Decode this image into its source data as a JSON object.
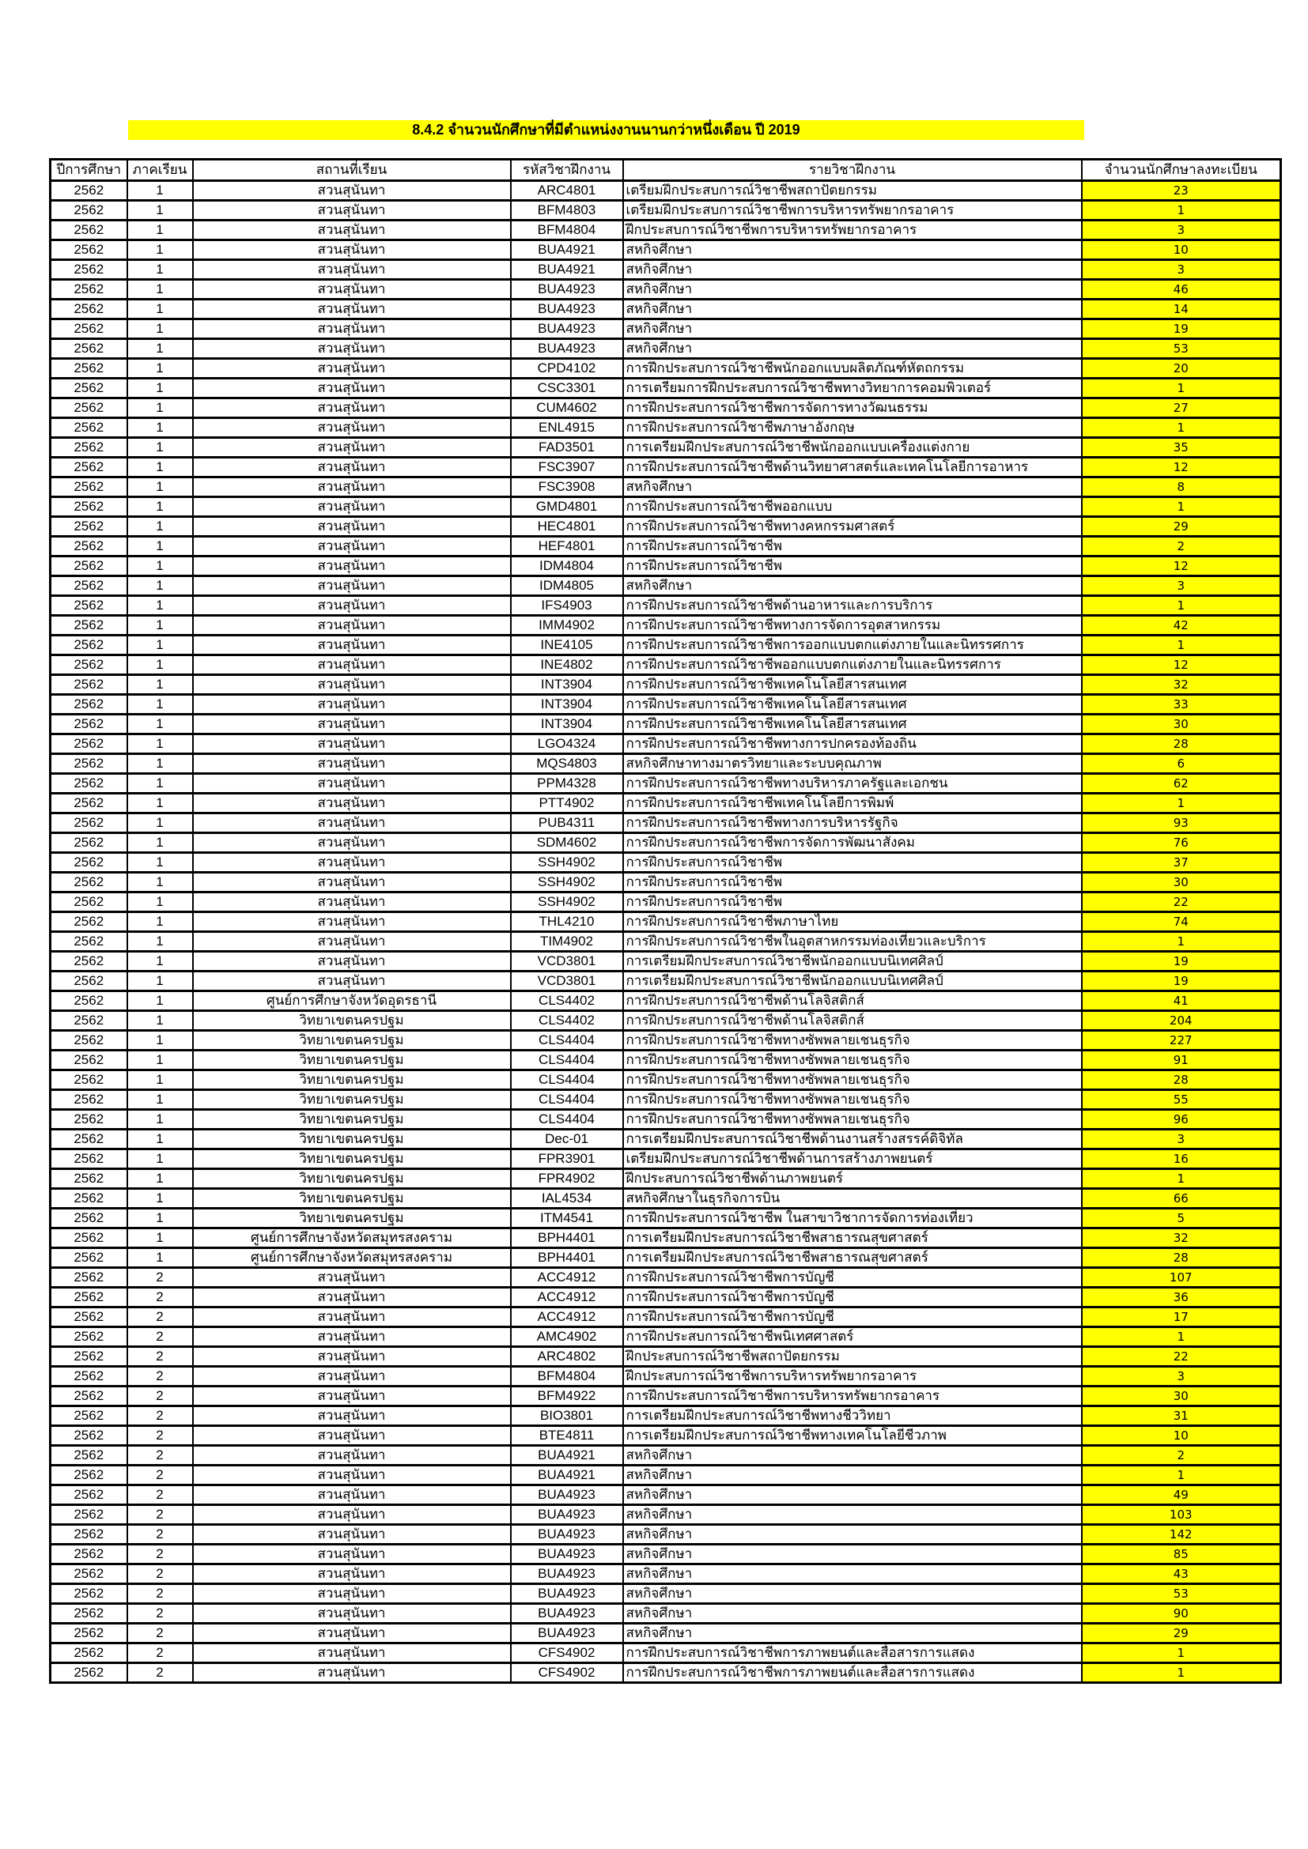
{
  "title": "8.4.2 จำนวนนักศึกษาที่มีตำแหน่งงานนานกว่าหนึ่งเดือน ปี 2019",
  "colors": {
    "highlight": "#ffff00",
    "border": "#000000"
  },
  "headers": [
    "ปีการศึกษา",
    "ภาคเรียน",
    "สถานที่เรียน",
    "รหัสวิชาฝึกงาน",
    "รายวิชาฝึกงาน",
    "จำนวนนักศึกษาลงทะเบียน"
  ],
  "rows": [
    [
      "2562",
      "1",
      "สวนสุนันทา",
      "ARC4801",
      "เตรียมฝึกประสบการณ์วิชาชีพสถาปัตยกรรม",
      "23"
    ],
    [
      "2562",
      "1",
      "สวนสุนันทา",
      "BFM4803",
      "เตรียมฝึกประสบการณ์วิชาชีพการบริหารทรัพยากรอาคาร",
      "1"
    ],
    [
      "2562",
      "1",
      "สวนสุนันทา",
      "BFM4804",
      "ฝึกประสบการณ์วิชาชีพการบริหารทรัพยากรอาคาร",
      "3"
    ],
    [
      "2562",
      "1",
      "สวนสุนันทา",
      "BUA4921",
      "สหกิจศึกษา",
      "10"
    ],
    [
      "2562",
      "1",
      "สวนสุนันทา",
      "BUA4921",
      "สหกิจศึกษา",
      "3"
    ],
    [
      "2562",
      "1",
      "สวนสุนันทา",
      "BUA4923",
      "สหกิจศึกษา",
      "46"
    ],
    [
      "2562",
      "1",
      "สวนสุนันทา",
      "BUA4923",
      "สหกิจศึกษา",
      "14"
    ],
    [
      "2562",
      "1",
      "สวนสุนันทา",
      "BUA4923",
      "สหกิจศึกษา",
      "19"
    ],
    [
      "2562",
      "1",
      "สวนสุนันทา",
      "BUA4923",
      "สหกิจศึกษา",
      "53"
    ],
    [
      "2562",
      "1",
      "สวนสุนันทา",
      "CPD4102",
      "การฝึกประสบการณ์วิชาชีพนักออกแบบผลิตภัณฑ์หัตถกรรม",
      "20"
    ],
    [
      "2562",
      "1",
      "สวนสุนันทา",
      "CSC3301",
      "การเตรียมการฝึกประสบการณ์วิชาชีพทางวิทยาการคอมพิวเตอร์",
      "1"
    ],
    [
      "2562",
      "1",
      "สวนสุนันทา",
      "CUM4602",
      "การฝึกประสบการณ์วิชาชีพการจัดการทางวัฒนธรรม",
      "27"
    ],
    [
      "2562",
      "1",
      "สวนสุนันทา",
      "ENL4915",
      "การฝึกประสบการณ์วิชาชีพภาษาอังกฤษ",
      "1"
    ],
    [
      "2562",
      "1",
      "สวนสุนันทา",
      "FAD3501",
      "การเตรียมฝึกประสบการณ์วิชาชีพนักออกแบบเครื่องแต่งกาย",
      "35"
    ],
    [
      "2562",
      "1",
      "สวนสุนันทา",
      "FSC3907",
      "การฝึกประสบการณ์วิชาชีพด้านวิทยาศาสตร์และเทคโนโลยีการอาหาร",
      "12"
    ],
    [
      "2562",
      "1",
      "สวนสุนันทา",
      "FSC3908",
      "สหกิจศึกษา",
      "8"
    ],
    [
      "2562",
      "1",
      "สวนสุนันทา",
      "GMD4801",
      "การฝึกประสบการณ์วิชาชีพออกแบบ",
      "1"
    ],
    [
      "2562",
      "1",
      "สวนสุนันทา",
      "HEC4801",
      "การฝึกประสบการณ์วิชาชีพทางคหกรรมศาสตร์",
      "29"
    ],
    [
      "2562",
      "1",
      "สวนสุนันทา",
      "HEF4801",
      "การฝึกประสบการณ์วิชาชีพ",
      "2"
    ],
    [
      "2562",
      "1",
      "สวนสุนันทา",
      "IDM4804",
      "การฝึกประสบการณ์วิชาชีพ",
      "12"
    ],
    [
      "2562",
      "1",
      "สวนสุนันทา",
      "IDM4805",
      "สหกิจศึกษา",
      "3"
    ],
    [
      "2562",
      "1",
      "สวนสุนันทา",
      "IFS4903",
      "การฝึกประสบการณ์วิชาชีพด้านอาหารและการบริการ",
      "1"
    ],
    [
      "2562",
      "1",
      "สวนสุนันทา",
      "IMM4902",
      "การฝึกประสบการณ์วิชาชีพทางการจัดการอุตสาหกรรม",
      "42"
    ],
    [
      "2562",
      "1",
      "สวนสุนันทา",
      "INE4105",
      "การฝึกประสบการณ์วิชาชีพการออกแบบตกแต่งภายในและนิทรรศการ",
      "1"
    ],
    [
      "2562",
      "1",
      "สวนสุนันทา",
      "INE4802",
      "การฝึกประสบการณ์วิชาชีพออกแบบตกแต่งภายในและนิทรรศการ",
      "12"
    ],
    [
      "2562",
      "1",
      "สวนสุนันทา",
      "INT3904",
      "การฝึกประสบการณ์วิชาชีพเทคโนโลยีสารสนเทศ",
      "32"
    ],
    [
      "2562",
      "1",
      "สวนสุนันทา",
      "INT3904",
      "การฝึกประสบการณ์วิชาชีพเทคโนโลยีสารสนเทศ",
      "33"
    ],
    [
      "2562",
      "1",
      "สวนสุนันทา",
      "INT3904",
      "การฝึกประสบการณ์วิชาชีพเทคโนโลยีสารสนเทศ",
      "30"
    ],
    [
      "2562",
      "1",
      "สวนสุนันทา",
      "LGO4324",
      "การฝึกประสบการณ์วิชาชีพทางการปกครองท้องถิ่น",
      "28"
    ],
    [
      "2562",
      "1",
      "สวนสุนันทา",
      "MQS4803",
      "สหกิจศึกษาทางมาตรวิทยาและระบบคุณภาพ",
      "6"
    ],
    [
      "2562",
      "1",
      "สวนสุนันทา",
      "PPM4328",
      "การฝึกประสบการณ์วิชาชีพทางบริหารภาครัฐและเอกชน",
      "62"
    ],
    [
      "2562",
      "1",
      "สวนสุนันทา",
      "PTT4902",
      "การฝึกประสบการณ์วิชาชีพเทคโนโลยีการพิมพ์",
      "1"
    ],
    [
      "2562",
      "1",
      "สวนสุนันทา",
      "PUB4311",
      "การฝึกประสบการณ์วิชาชีพทางการบริหารรัฐกิจ",
      "93"
    ],
    [
      "2562",
      "1",
      "สวนสุนันทา",
      "SDM4602",
      "การฝึกประสบการณ์วิชาชีพการจัดการพัฒนาสังคม",
      "76"
    ],
    [
      "2562",
      "1",
      "สวนสุนันทา",
      "SSH4902",
      "การฝึกประสบการณ์วิชาชีพ",
      "37"
    ],
    [
      "2562",
      "1",
      "สวนสุนันทา",
      "SSH4902",
      "การฝึกประสบการณ์วิชาชีพ",
      "30"
    ],
    [
      "2562",
      "1",
      "สวนสุนันทา",
      "SSH4902",
      "การฝึกประสบการณ์วิชาชีพ",
      "22"
    ],
    [
      "2562",
      "1",
      "สวนสุนันทา",
      "THL4210",
      "การฝึกประสบการณ์วิชาชีพภาษาไทย",
      "74"
    ],
    [
      "2562",
      "1",
      "สวนสุนันทา",
      "TIM4902",
      "การฝึกประสบการณ์วิชาชีพในอุตสาหกรรมท่องเที่ยวและบริการ",
      "1"
    ],
    [
      "2562",
      "1",
      "สวนสุนันทา",
      "VCD3801",
      "การเตรียมฝึกประสบการณ์วิชาชีพนักออกแบบนิเทศศิลป์",
      "19"
    ],
    [
      "2562",
      "1",
      "สวนสุนันทา",
      "VCD3801",
      "การเตรียมฝึกประสบการณ์วิชาชีพนักออกแบบนิเทศศิลป์",
      "19"
    ],
    [
      "2562",
      "1",
      "ศูนย์การศึกษาจังหวัดอุดรธานี",
      "CLS4402",
      "การฝึกประสบการณ์วิชาชีพด้านโลจิสติกส์",
      "41"
    ],
    [
      "2562",
      "1",
      "วิทยาเขตนครปฐม",
      "CLS4402",
      "การฝึกประสบการณ์วิชาชีพด้านโลจิสติกส์",
      "204"
    ],
    [
      "2562",
      "1",
      "วิทยาเขตนครปฐม",
      "CLS4404",
      "การฝึกประสบการณ์วิชาชีพทางซัพพลายเชนธุรกิจ",
      "227"
    ],
    [
      "2562",
      "1",
      "วิทยาเขตนครปฐม",
      "CLS4404",
      "การฝึกประสบการณ์วิชาชีพทางซัพพลายเชนธุรกิจ",
      "91"
    ],
    [
      "2562",
      "1",
      "วิทยาเขตนครปฐม",
      "CLS4404",
      "การฝึกประสบการณ์วิชาชีพทางซัพพลายเชนธุรกิจ",
      "28"
    ],
    [
      "2562",
      "1",
      "วิทยาเขตนครปฐม",
      "CLS4404",
      "การฝึกประสบการณ์วิชาชีพทางซัพพลายเชนธุรกิจ",
      "55"
    ],
    [
      "2562",
      "1",
      "วิทยาเขตนครปฐม",
      "CLS4404",
      "การฝึกประสบการณ์วิชาชีพทางซัพพลายเชนธุรกิจ",
      "96"
    ],
    [
      "2562",
      "1",
      "วิทยาเขตนครปฐม",
      "Dec-01",
      "การเตรียมฝึกประสบการณ์วิชาชีพด้านงานสร้างสรรค์ดิจิทัล",
      "3"
    ],
    [
      "2562",
      "1",
      "วิทยาเขตนครปฐม",
      "FPR3901",
      "เตรียมฝึกประสบการณ์วิชาชีพด้านการสร้างภาพยนตร์",
      "16"
    ],
    [
      "2562",
      "1",
      "วิทยาเขตนครปฐม",
      "FPR4902",
      "ฝึกประสบการณ์วิชาชีพด้านภาพยนตร์",
      "1"
    ],
    [
      "2562",
      "1",
      "วิทยาเขตนครปฐม",
      "IAL4534",
      "สหกิจศึกษาในธุรกิจการบิน",
      "66"
    ],
    [
      "2562",
      "1",
      "วิทยาเขตนครปฐม",
      "ITM4541",
      "การฝึกประสบการณ์วิชาชีพ ในสาขาวิชาการจัดการท่องเที่ยว",
      "5"
    ],
    [
      "2562",
      "1",
      "ศูนย์การศึกษาจังหวัดสมุทรสงคราม",
      "BPH4401",
      "การเตรียมฝึกประสบการณ์วิชาชีพสาธารณสุขศาสตร์",
      "32"
    ],
    [
      "2562",
      "1",
      "ศูนย์การศึกษาจังหวัดสมุทรสงคราม",
      "BPH4401",
      "การเตรียมฝึกประสบการณ์วิชาชีพสาธารณสุขศาสตร์",
      "28"
    ],
    [
      "2562",
      "2",
      "สวนสุนันทา",
      "ACC4912",
      "การฝึกประสบการณ์วิชาชีพการบัญชี",
      "107"
    ],
    [
      "2562",
      "2",
      "สวนสุนันทา",
      "ACC4912",
      "การฝึกประสบการณ์วิชาชีพการบัญชี",
      "36"
    ],
    [
      "2562",
      "2",
      "สวนสุนันทา",
      "ACC4912",
      "การฝึกประสบการณ์วิชาชีพการบัญชี",
      "17"
    ],
    [
      "2562",
      "2",
      "สวนสุนันทา",
      "AMC4902",
      "การฝึกประสบการณ์วิชาชีพนิเทศศาสตร์",
      "1"
    ],
    [
      "2562",
      "2",
      "สวนสุนันทา",
      "ARC4802",
      "ฝึกประสบการณ์วิชาชีพสถาปัตยกรรม",
      "22"
    ],
    [
      "2562",
      "2",
      "สวนสุนันทา",
      "BFM4804",
      "ฝึกประสบการณ์วิชาชีพการบริหารทรัพยากรอาคาร",
      "3"
    ],
    [
      "2562",
      "2",
      "สวนสุนันทา",
      "BFM4922",
      "การฝึกประสบการณ์วิชาชีพการบริหารทรัพยากรอาคาร",
      "30"
    ],
    [
      "2562",
      "2",
      "สวนสุนันทา",
      "BIO3801",
      "การเตรียมฝึกประสบการณ์วิชาชีพทางชีววิทยา",
      "31"
    ],
    [
      "2562",
      "2",
      "สวนสุนันทา",
      "BTE4811",
      "การเตรียมฝึกประสบการณ์วิชาชีพทางเทคโนโลยีชีวภาพ",
      "10"
    ],
    [
      "2562",
      "2",
      "สวนสุนันทา",
      "BUA4921",
      "สหกิจศึกษา",
      "2"
    ],
    [
      "2562",
      "2",
      "สวนสุนันทา",
      "BUA4921",
      "สหกิจศึกษา",
      "1"
    ],
    [
      "2562",
      "2",
      "สวนสุนันทา",
      "BUA4923",
      "สหกิจศึกษา",
      "49"
    ],
    [
      "2562",
      "2",
      "สวนสุนันทา",
      "BUA4923",
      "สหกิจศึกษา",
      "103"
    ],
    [
      "2562",
      "2",
      "สวนสุนันทา",
      "BUA4923",
      "สหกิจศึกษา",
      "142"
    ],
    [
      "2562",
      "2",
      "สวนสุนันทา",
      "BUA4923",
      "สหกิจศึกษา",
      "85"
    ],
    [
      "2562",
      "2",
      "สวนสุนันทา",
      "BUA4923",
      "สหกิจศึกษา",
      "43"
    ],
    [
      "2562",
      "2",
      "สวนสุนันทา",
      "BUA4923",
      "สหกิจศึกษา",
      "53"
    ],
    [
      "2562",
      "2",
      "สวนสุนันทา",
      "BUA4923",
      "สหกิจศึกษา",
      "90"
    ],
    [
      "2562",
      "2",
      "สวนสุนันทา",
      "BUA4923",
      "สหกิจศึกษา",
      "29"
    ],
    [
      "2562",
      "2",
      "สวนสุนันทา",
      "CFS4902",
      "การฝึกประสบการณ์วิชาชีพการภาพยนต์และสื่อสารการแสดง",
      "1"
    ],
    [
      "2562",
      "2",
      "สวนสุนันทา",
      "CFS4902",
      "การฝึกประสบการณ์วิชาชีพการภาพยนต์และสื่อสารการแสดง",
      "1"
    ]
  ]
}
